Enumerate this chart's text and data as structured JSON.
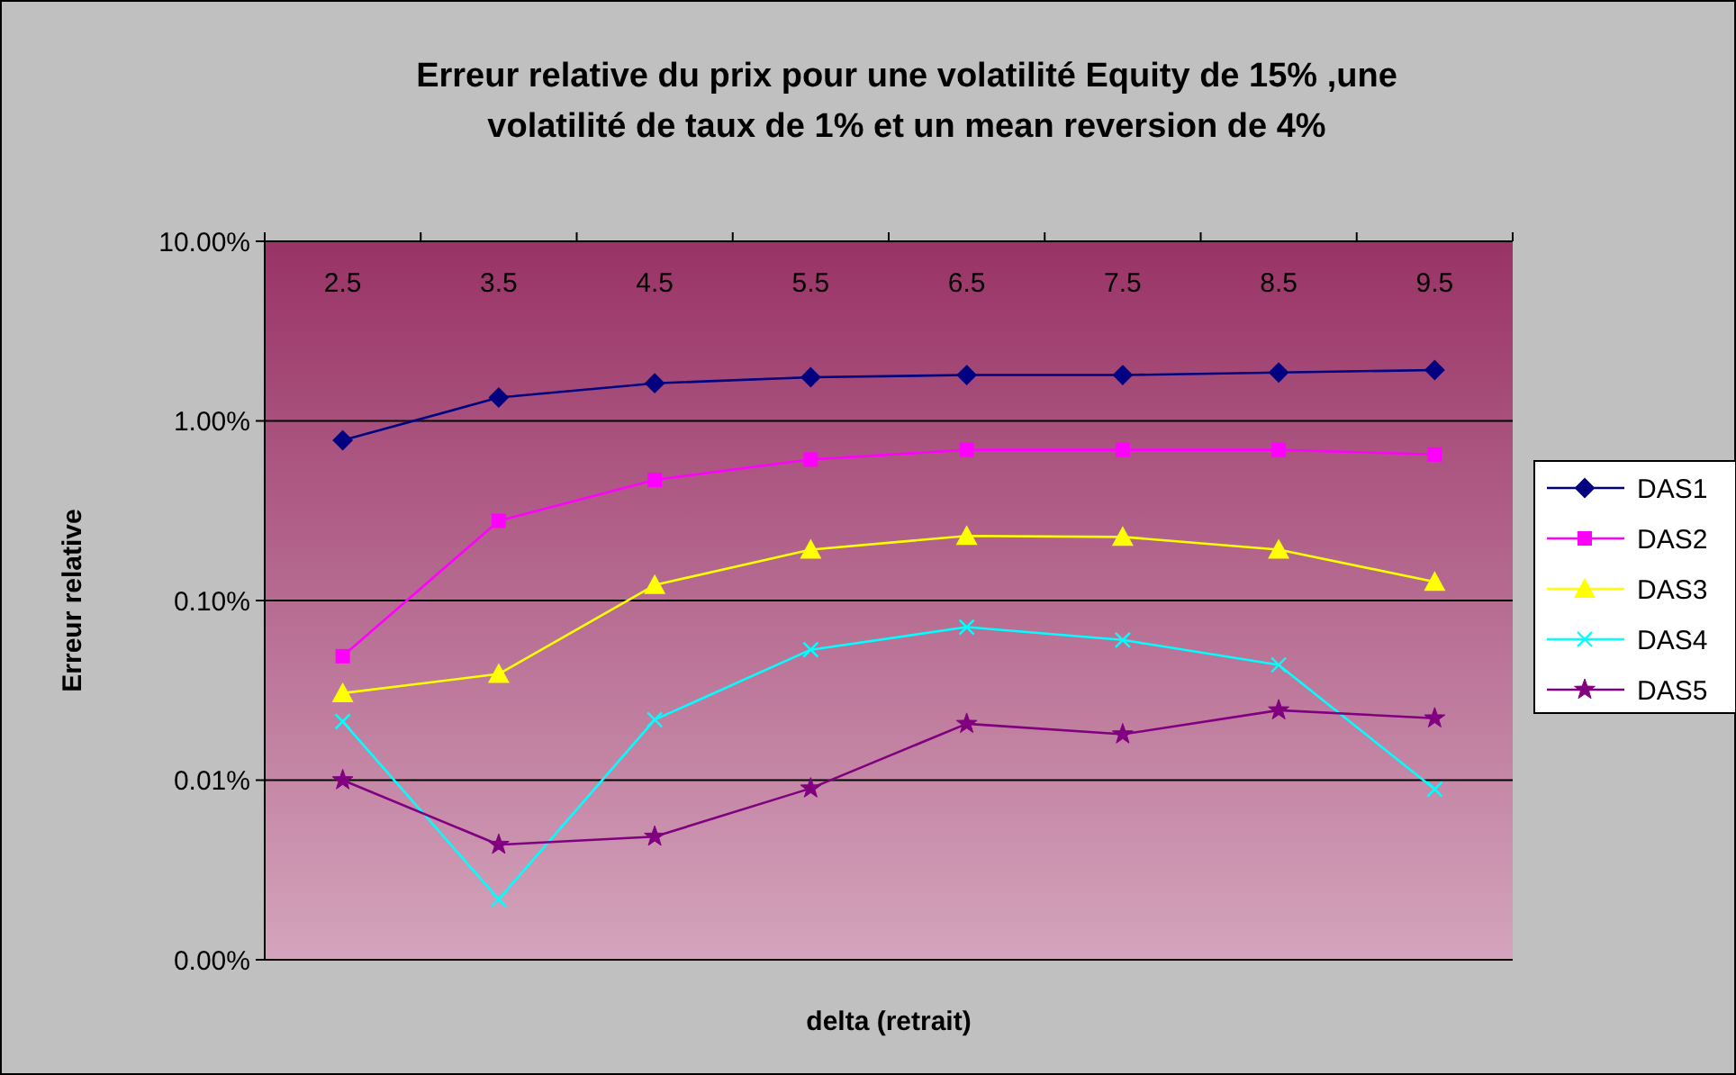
{
  "chart_data": {
    "type": "line",
    "title": "Erreur relative du prix pour une volatilité Equity de 15% ,une volatilité de taux de 1% et un mean reversion de 4%",
    "xlabel": "delta (retrait)",
    "ylabel": "Erreur relative",
    "categories": [
      "2.5",
      "3.5",
      "4.5",
      "5.5",
      "6.5",
      "7.5",
      "8.5",
      "9.5"
    ],
    "log": true,
    "ylim": [
      0.001,
      10
    ],
    "yticks": [
      {
        "value": 0.001,
        "label": "0.00%"
      },
      {
        "value": 0.01,
        "label": "0.01%"
      },
      {
        "value": 0.1,
        "label": "0.10%"
      },
      {
        "value": 1,
        "label": "1.00%"
      },
      {
        "value": 10,
        "label": "10.00%"
      }
    ],
    "grid": "y",
    "legend": "right",
    "series": [
      {
        "name": "DAS1",
        "color": "#000080",
        "marker": "diamond",
        "values": [
          0.78,
          1.35,
          1.62,
          1.75,
          1.8,
          1.8,
          1.86,
          1.92
        ]
      },
      {
        "name": "DAS2",
        "color": "#ff00ff",
        "marker": "square",
        "values": [
          0.049,
          0.278,
          0.47,
          0.61,
          0.69,
          0.69,
          0.69,
          0.65
        ]
      },
      {
        "name": "DAS3",
        "color": "#ffff00",
        "marker": "triangle",
        "values": [
          0.0305,
          0.039,
          0.122,
          0.192,
          0.229,
          0.226,
          0.192,
          0.127
        ]
      },
      {
        "name": "DAS4",
        "color": "#00ffff",
        "marker": "cross",
        "values": [
          0.0212,
          0.00217,
          0.0217,
          0.0532,
          0.0711,
          0.0603,
          0.0438,
          0.0089
        ]
      },
      {
        "name": "DAS5",
        "color": "#800080",
        "marker": "star",
        "values": [
          0.01,
          0.00437,
          0.00485,
          0.009,
          0.0206,
          0.018,
          0.0245,
          0.0221
        ]
      }
    ]
  }
}
